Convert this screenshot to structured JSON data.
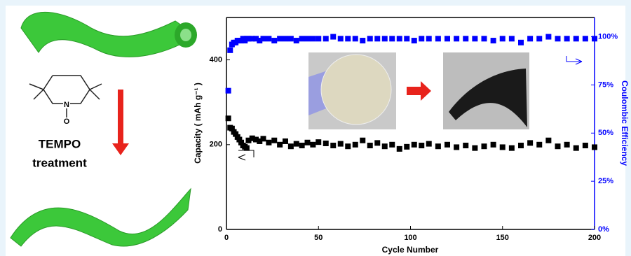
{
  "illustration": {
    "atoms": [
      "N",
      "O"
    ],
    "caption": [
      "TEMPO",
      "treatment"
    ]
  },
  "chart_data": {
    "type": "scatter",
    "x_label": "Cycle Number",
    "y_label": "Capacity ( mAh g⁻¹ )",
    "y2_label": "Coulombic Efficiency",
    "xlim": [
      0,
      200
    ],
    "xticks": [
      0,
      50,
      100,
      150,
      200
    ],
    "ylim": [
      0,
      500
    ],
    "yticks": [
      0,
      200,
      400
    ],
    "y2lim": [
      0,
      110
    ],
    "y2ticks": [
      {
        "value": 0,
        "label": "0%"
      },
      {
        "value": 25,
        "label": "25%"
      },
      {
        "value": 50,
        "label": "50%"
      },
      {
        "value": 75,
        "label": "75%"
      },
      {
        "value": 100,
        "label": "100%"
      }
    ],
    "grid": false,
    "x": [
      1,
      2,
      3,
      4,
      5,
      6,
      7,
      8,
      9,
      10,
      11,
      12,
      14,
      16,
      18,
      20,
      23,
      26,
      29,
      32,
      35,
      38,
      41,
      44,
      47,
      50,
      54,
      58,
      62,
      66,
      70,
      74,
      78,
      82,
      86,
      90,
      94,
      98,
      102,
      106,
      110,
      115,
      120,
      125,
      130,
      135,
      140,
      145,
      150,
      155,
      160,
      165,
      170,
      175,
      180,
      185,
      190,
      195,
      200
    ],
    "series": [
      {
        "color": "#000000",
        "values": [
          262,
          240,
          238,
          230,
          225,
          218,
          212,
          205,
          198,
          195,
          192,
          210,
          215,
          212,
          208,
          214,
          205,
          210,
          200,
          208,
          196,
          202,
          198,
          205,
          200,
          206,
          203,
          198,
          202,
          196,
          200,
          210,
          198,
          204,
          196,
          200,
          190,
          195,
          200,
          198,
          202,
          196,
          200,
          194,
          198,
          192,
          196,
          200,
          194,
          192,
          198,
          204,
          200,
          210,
          196,
          200,
          192,
          198,
          194
        ]
      },
      {
        "color": "#0000ff",
        "axis": "y2",
        "values": [
          72,
          93,
          96,
          97,
          97,
          98,
          98,
          98,
          99,
          98,
          99,
          99,
          99,
          99,
          98,
          99,
          99,
          98,
          99,
          99,
          99,
          98,
          99,
          99,
          99,
          99,
          99,
          100,
          99,
          99,
          99,
          98,
          99,
          99,
          99,
          99,
          99,
          99,
          98,
          99,
          99,
          99,
          99,
          99,
          99,
          99,
          99,
          98,
          99,
          99,
          97,
          99,
          99,
          100,
          99,
          99,
          99,
          99,
          99
        ]
      }
    ]
  }
}
